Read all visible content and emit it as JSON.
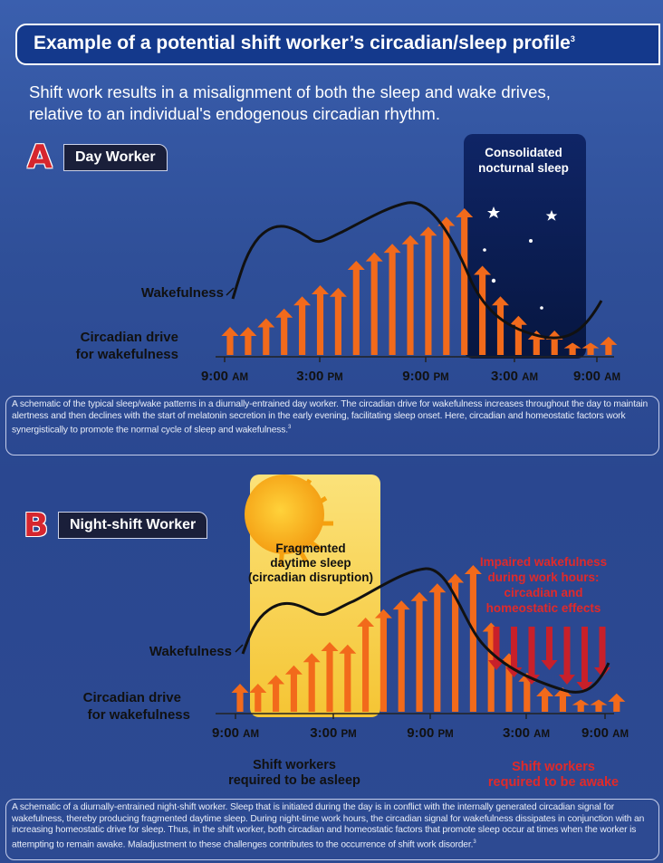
{
  "header": {
    "title": "Example of a potential shift worker’s circadian/sleep profile",
    "title_ref": "3",
    "subtitle": "Shift work results in a misalignment of both the sleep and wake drives, relative to an individual's endogenous circadian rhythm."
  },
  "panel_a": {
    "letter": "A",
    "badge": "Day Worker",
    "sleep_box": {
      "line1": "Consolidated",
      "line2": "nocturnal sleep"
    },
    "wakefulness_label": "Wakefulness",
    "drive_label": {
      "line1": "Circadian drive",
      "line2": "for wakefulness"
    },
    "ticks": [
      {
        "time": "9:00",
        "ampm": "AM"
      },
      {
        "time": "3:00",
        "ampm": "PM"
      },
      {
        "time": "9:00",
        "ampm": "PM"
      },
      {
        "time": "3:00",
        "ampm": "AM"
      },
      {
        "time": "9:00",
        "ampm": "AM"
      }
    ],
    "caption": "A schematic of the typical sleep/wake patterns in a diurnally-entrained day worker. The circadian drive for wakefulness increases throughout the day to maintain alertness and then declines with the start of melatonin secretion in the early evening, facilitating sleep onset.  Here, circadian and homeostatic factors work synergistically to promote the normal cycle of sleep and wakefulness.",
    "caption_ref": "3",
    "bar_levels": [
      0.23,
      0.23,
      0.3,
      0.38,
      0.48,
      0.57,
      0.55,
      0.77,
      0.84,
      0.91,
      0.98,
      1.05,
      1.13,
      1.2,
      0.73,
      0.48,
      0.32,
      0.2,
      0.2,
      0.1,
      0.1,
      0.15
    ]
  },
  "panel_b": {
    "letter": "B",
    "badge": "Night-shift Worker",
    "sleep_box": {
      "line1": "Fragmented",
      "line2": "daytime sleep",
      "line3": "(circadian disruption)"
    },
    "impaired": {
      "line1": "Impaired wakefulness",
      "line2": "during work hours:",
      "line3": "circadian and",
      "line4": "homeostatic effects"
    },
    "wakefulness_label": "Wakefulness",
    "drive_label": {
      "line1": "Circadian drive",
      "line2": "for wakefulness"
    },
    "ticks": [
      {
        "time": "9:00",
        "ampm": "AM"
      },
      {
        "time": "3:00",
        "ampm": "PM"
      },
      {
        "time": "9:00",
        "ampm": "PM"
      },
      {
        "time": "3:00",
        "ampm": "AM"
      },
      {
        "time": "9:00",
        "ampm": "AM"
      }
    ],
    "asleep_label": {
      "line1": "Shift workers",
      "line2": "required to be asleep"
    },
    "awake_label": {
      "line1": "Shift workers",
      "line2": "required to be awake"
    },
    "caption": "A schematic of a diurnally-entrained night-shift worker. Sleep that is initiated during the day is in conflict with the internally generated circadian signal for wakefulness, thereby producing fragmented daytime sleep. During night-time work hours, the circadian signal for wakefulness dissipates in conjunction with an increasing homeostatic drive for sleep. Thus, in the shift worker, both circadian and homeostatic factors that promote sleep occur at times when the worker is attempting to remain awake. Maladjustment to these challenges contributes to the occurrence of shift work disorder.",
    "caption_ref": "3",
    "bar_levels": [
      0.23,
      0.23,
      0.3,
      0.38,
      0.48,
      0.57,
      0.55,
      0.77,
      0.84,
      0.91,
      0.98,
      1.05,
      1.13,
      1.2,
      0.73,
      0.48,
      0.32,
      0.2,
      0.2,
      0.1,
      0.1,
      0.15
    ],
    "down_arrow_count": 7
  },
  "colors": {
    "background": "#2f4f98",
    "title_bar": "#14398c",
    "arrow": "#f26a1b",
    "down_arrow": "#c8202a",
    "night_box": "#0c1d52",
    "sun_box": "#f7cf45",
    "curve": "#111111",
    "red_text": "#e02a2a"
  }
}
